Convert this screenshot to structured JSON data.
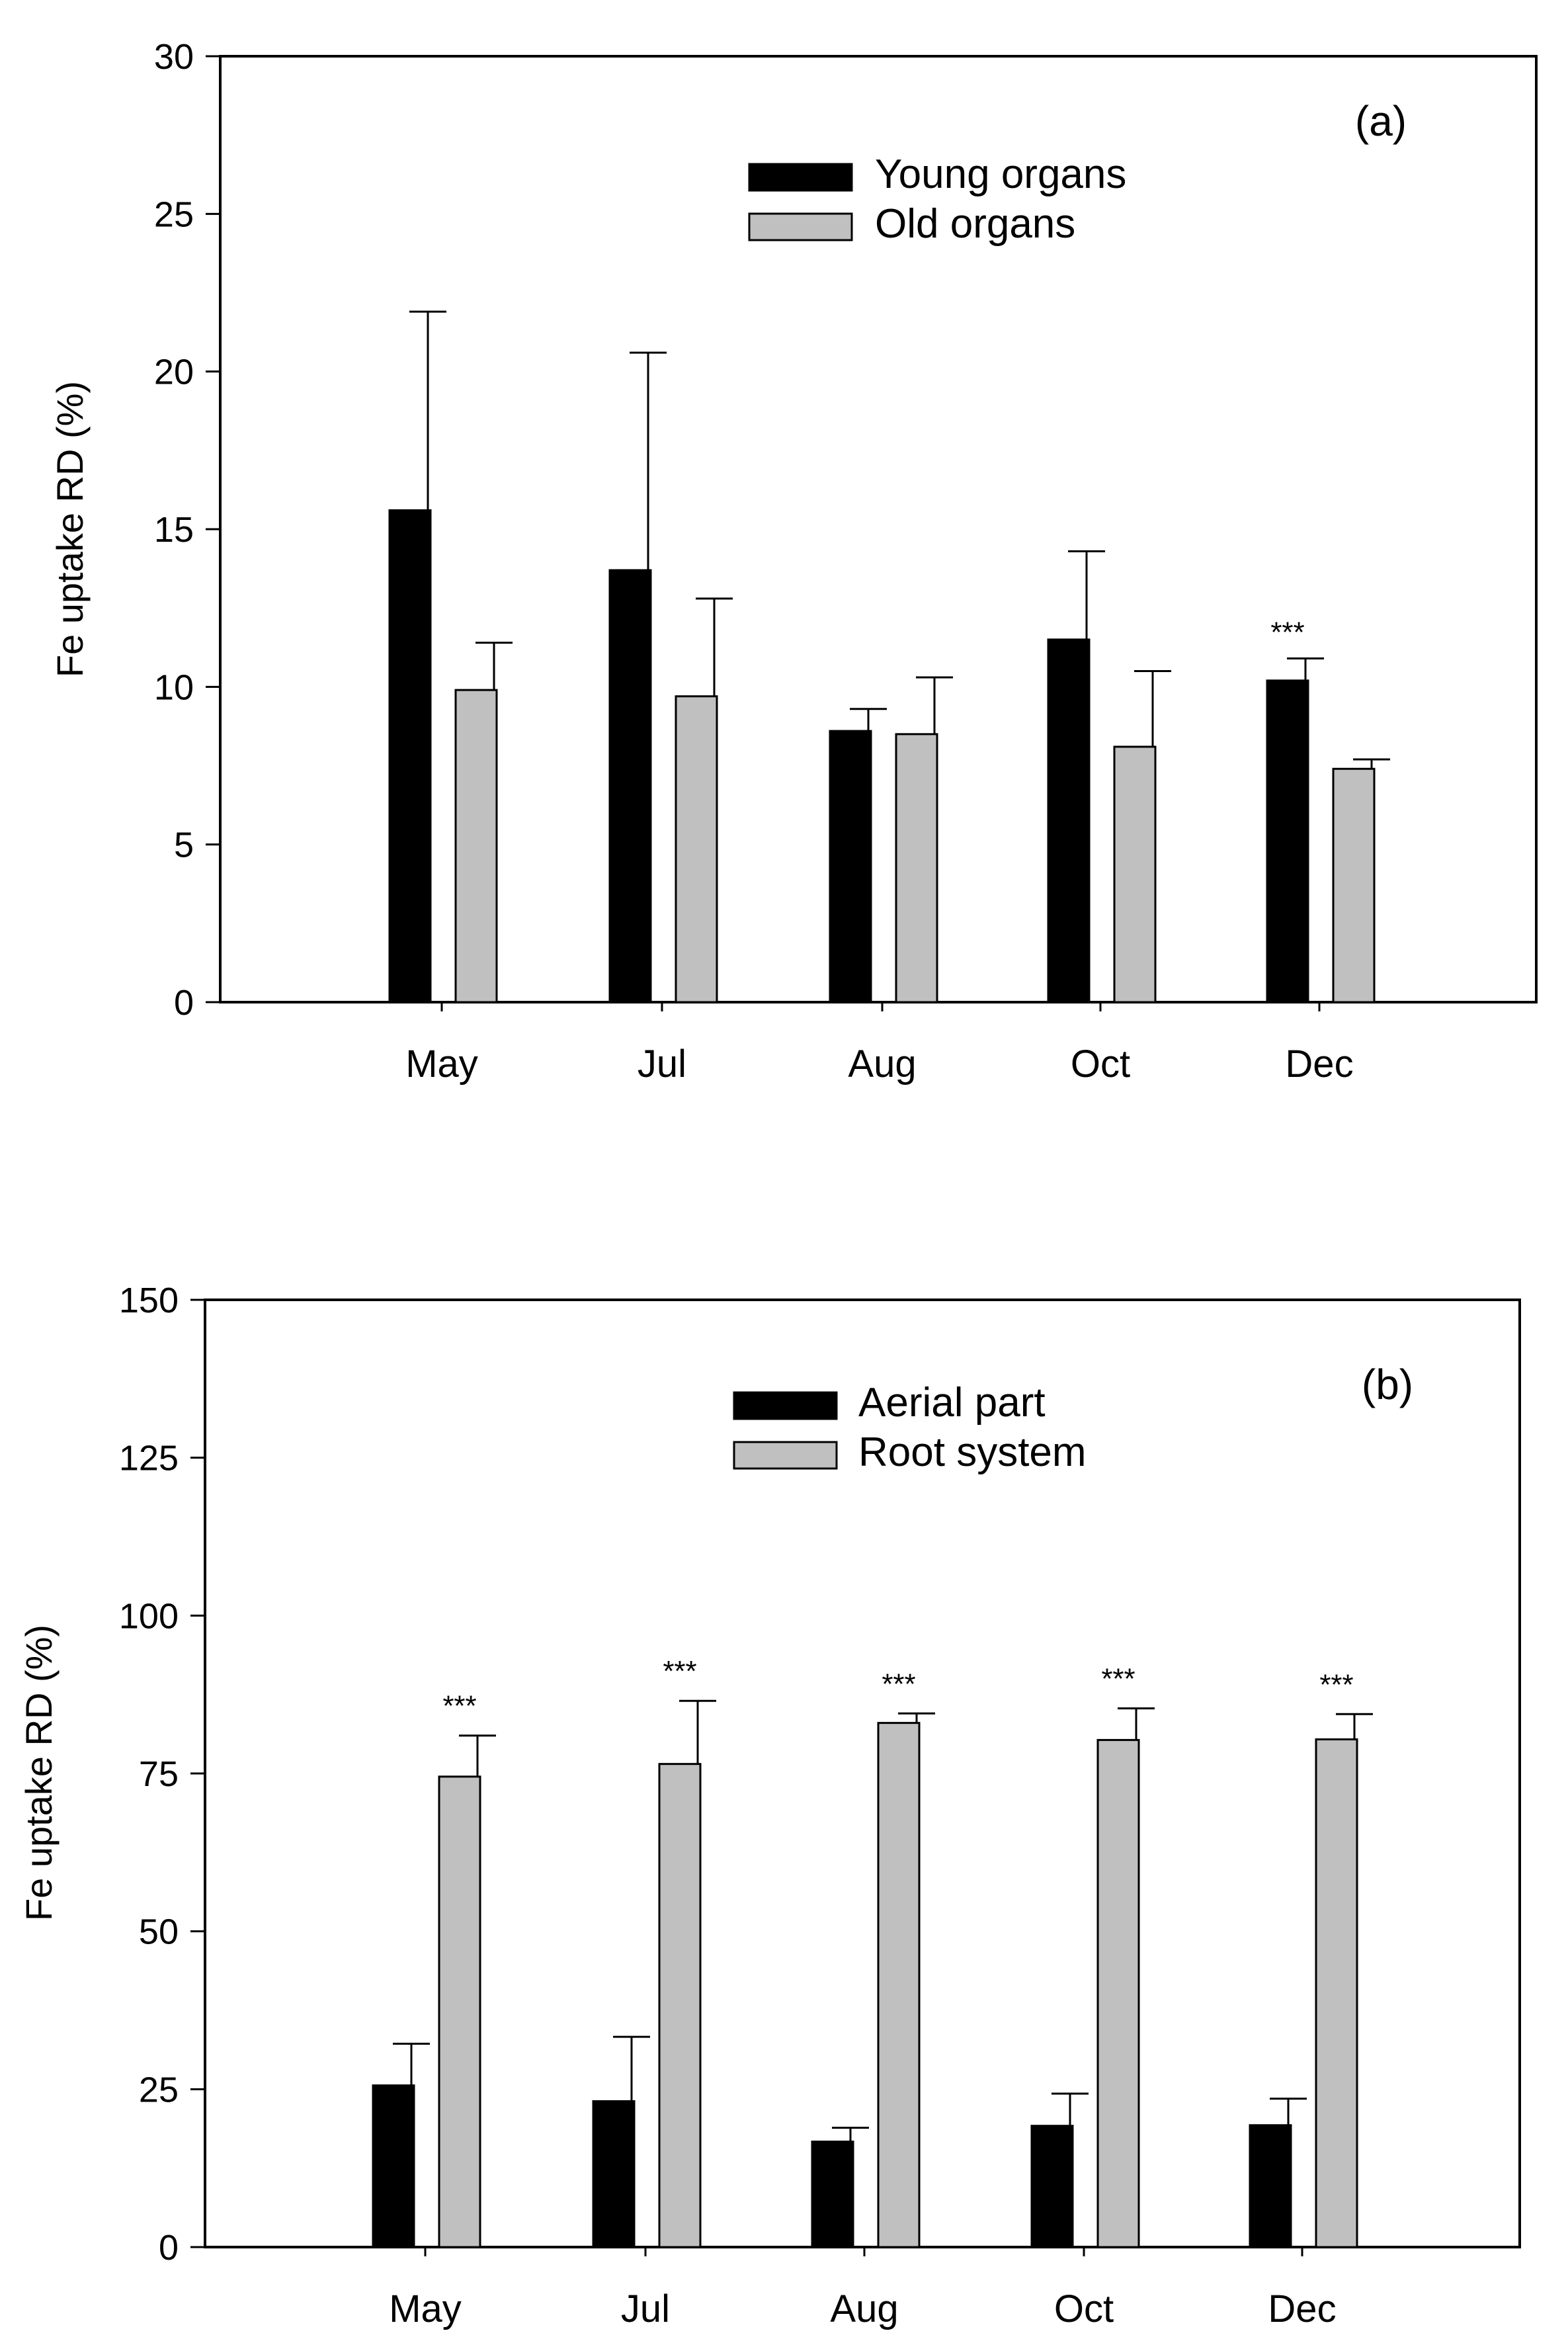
{
  "chart_data": [
    {
      "type": "bar",
      "panel_label": "(a)",
      "categories": [
        "May",
        "Jul",
        "Aug",
        "Oct",
        "Dec"
      ],
      "ylabel": "Fe uptake RD (%)",
      "ylim": [
        0,
        30
      ],
      "yticks": [
        0,
        5,
        10,
        15,
        20,
        25,
        30
      ],
      "legend_position": "top-center",
      "series": [
        {
          "name": "Young organs",
          "color": "#000000",
          "values": [
            15.6,
            13.7,
            8.6,
            11.5,
            10.2
          ],
          "errors": [
            6.3,
            6.9,
            0.7,
            2.8,
            0.7
          ]
        },
        {
          "name": "Old organs",
          "color": "#c0c0c0",
          "values": [
            9.9,
            9.7,
            8.5,
            8.1,
            7.4
          ],
          "errors": [
            1.5,
            3.1,
            1.8,
            2.4,
            0.3
          ]
        }
      ],
      "annotations": [
        {
          "category": "Dec",
          "series": 0,
          "text": "***"
        }
      ]
    },
    {
      "type": "bar",
      "panel_label": "(b)",
      "categories": [
        "May",
        "Jul",
        "Aug",
        "Oct",
        "Dec"
      ],
      "ylabel": "Fe uptake RD (%)",
      "ylim": [
        0,
        150
      ],
      "yticks": [
        0,
        25,
        50,
        75,
        100,
        125,
        150
      ],
      "legend_position": "top-center",
      "series": [
        {
          "name": "Aerial part",
          "color": "#000000",
          "values": [
            25.6,
            23.1,
            16.7,
            19.2,
            19.3
          ],
          "errors": [
            6.6,
            10.2,
            2.2,
            5.1,
            4.2
          ]
        },
        {
          "name": "Root system",
          "color": "#c0c0c0",
          "values": [
            74.5,
            76.5,
            83.0,
            80.3,
            80.4
          ],
          "errors": [
            6.5,
            10.0,
            1.5,
            5.0,
            4.0
          ]
        }
      ],
      "annotations": [
        {
          "category": "May",
          "series": 1,
          "text": "***"
        },
        {
          "category": "Jul",
          "series": 1,
          "text": "***"
        },
        {
          "category": "Aug",
          "series": 1,
          "text": "***"
        },
        {
          "category": "Oct",
          "series": 1,
          "text": "***"
        },
        {
          "category": "Dec",
          "series": 1,
          "text": "***"
        }
      ]
    }
  ]
}
